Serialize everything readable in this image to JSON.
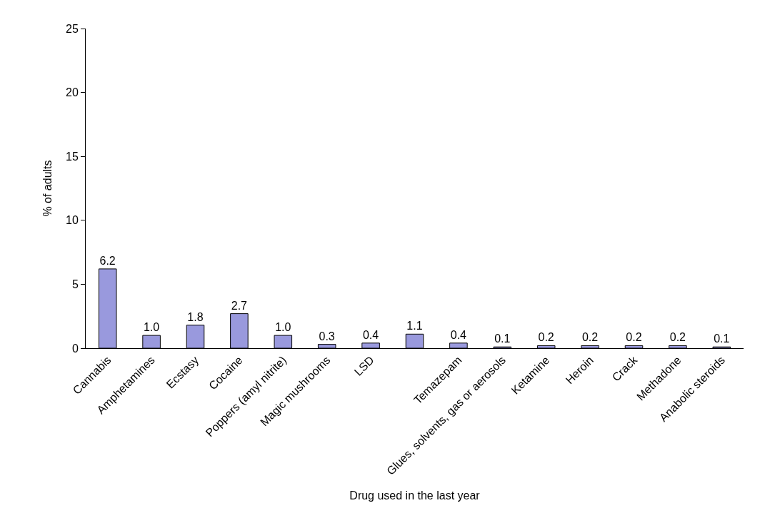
{
  "chart_data": {
    "type": "bar",
    "xlabel": "Drug used in the last year",
    "ylabel": "% of adults",
    "categories": [
      "Cannabis",
      "Amphetamines",
      "Ecstasy",
      "Cocaine",
      "Poppers (amyl nitrite)",
      "Magic mushrooms",
      "LSD",
      null,
      "Temazepam",
      "Glues, solvents, gas or aerosols",
      "Ketamine",
      "Heroin",
      "Crack",
      "Methadone",
      "Anabolic steroids"
    ],
    "values": [
      6.2,
      1.0,
      1.8,
      2.7,
      1.0,
      0.3,
      0.4,
      1.1,
      0.4,
      0.1,
      0.2,
      0.2,
      0.2,
      0.2,
      0.1
    ],
    "value_labels": [
      "6.2",
      "1.0",
      "1.8",
      "2.7",
      "1.0",
      "0.3",
      "0.4",
      "1.1",
      "0.4",
      "0.1",
      "0.2",
      "0.2",
      "0.2",
      "0.2",
      "0.1"
    ],
    "color": "#9999dd",
    "ylim": [
      0,
      25
    ],
    "yticks": [
      0,
      5,
      10,
      15,
      20,
      25
    ]
  }
}
